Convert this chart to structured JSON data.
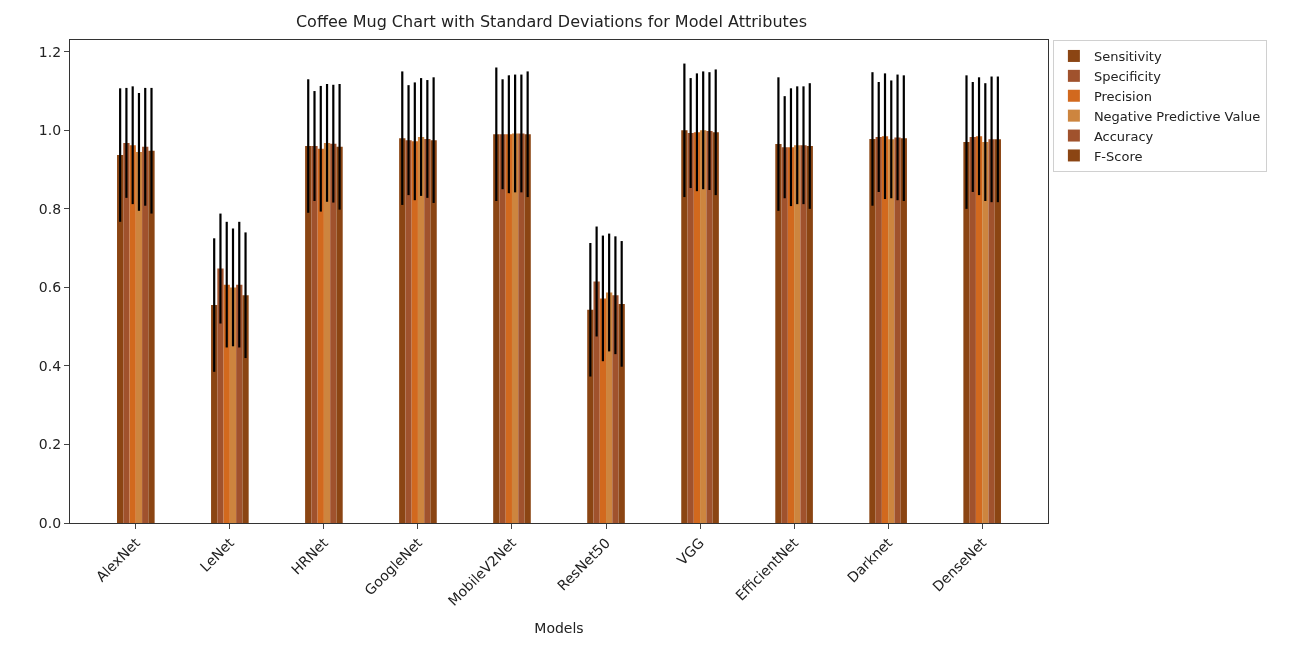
{
  "chart_data": {
    "type": "bar",
    "title": "Coffee Mug Chart with Standard Deviations for Model Attributes",
    "xlabel": "Models",
    "categories": [
      "AlexNet",
      "LeNet",
      "HRNet",
      "GoogleNet",
      "MobileV2Net",
      "ResNet50",
      "VGG",
      "EfficientNet",
      "Darknet",
      "DenseNet"
    ],
    "series": [
      {
        "name": "Sensitivity",
        "color": "#8b4513",
        "values": [
          0.937,
          0.555,
          0.96,
          0.98,
          0.99,
          0.543,
          1.0,
          0.965,
          0.978,
          0.97
        ],
        "errors": [
          0.17,
          0.17,
          0.17,
          0.17,
          0.17,
          0.17,
          0.17,
          0.17,
          0.17,
          0.17
        ]
      },
      {
        "name": "Specificity",
        "color": "#a0522d",
        "values": [
          0.968,
          0.648,
          0.96,
          0.975,
          0.99,
          0.615,
          0.993,
          0.957,
          0.983,
          0.983
        ],
        "errors": [
          0.14,
          0.14,
          0.14,
          0.14,
          0.14,
          0.14,
          0.14,
          0.13,
          0.14,
          0.14
        ]
      },
      {
        "name": "Precision",
        "color": "#d2691e",
        "values": [
          0.962,
          0.607,
          0.953,
          0.972,
          0.99,
          0.572,
          0.995,
          0.957,
          0.985,
          0.985
        ],
        "errors": [
          0.15,
          0.16,
          0.16,
          0.15,
          0.15,
          0.16,
          0.15,
          0.15,
          0.16,
          0.15
        ]
      },
      {
        "name": "Negative Predictive Value",
        "color": "#cd853f",
        "values": [
          0.945,
          0.6,
          0.968,
          0.983,
          0.992,
          0.587,
          1.0,
          0.962,
          0.977,
          0.97
        ],
        "errors": [
          0.15,
          0.15,
          0.15,
          0.15,
          0.15,
          0.15,
          0.15,
          0.15,
          0.15,
          0.15
        ]
      },
      {
        "name": "Accuracy",
        "color": "#a0522d",
        "values": [
          0.958,
          0.607,
          0.966,
          0.978,
          0.992,
          0.58,
          0.998,
          0.962,
          0.982,
          0.977
        ],
        "errors": [
          0.15,
          0.16,
          0.15,
          0.15,
          0.15,
          0.15,
          0.15,
          0.15,
          0.16,
          0.16
        ]
      },
      {
        "name": "F-Score",
        "color": "#8b4513",
        "values": [
          0.948,
          0.58,
          0.958,
          0.975,
          0.99,
          0.558,
          0.995,
          0.96,
          0.98,
          0.977
        ],
        "errors": [
          0.16,
          0.16,
          0.16,
          0.16,
          0.16,
          0.16,
          0.16,
          0.16,
          0.16,
          0.16
        ]
      }
    ],
    "ylim": [
      0,
      1.23
    ],
    "yticks": [
      {
        "value": 0,
        "label": "0.0"
      },
      0.2,
      0.4,
      0.6,
      0.8,
      {
        "value": 1,
        "label": "1.0"
      },
      1.2
    ],
    "legend": "top right"
  }
}
